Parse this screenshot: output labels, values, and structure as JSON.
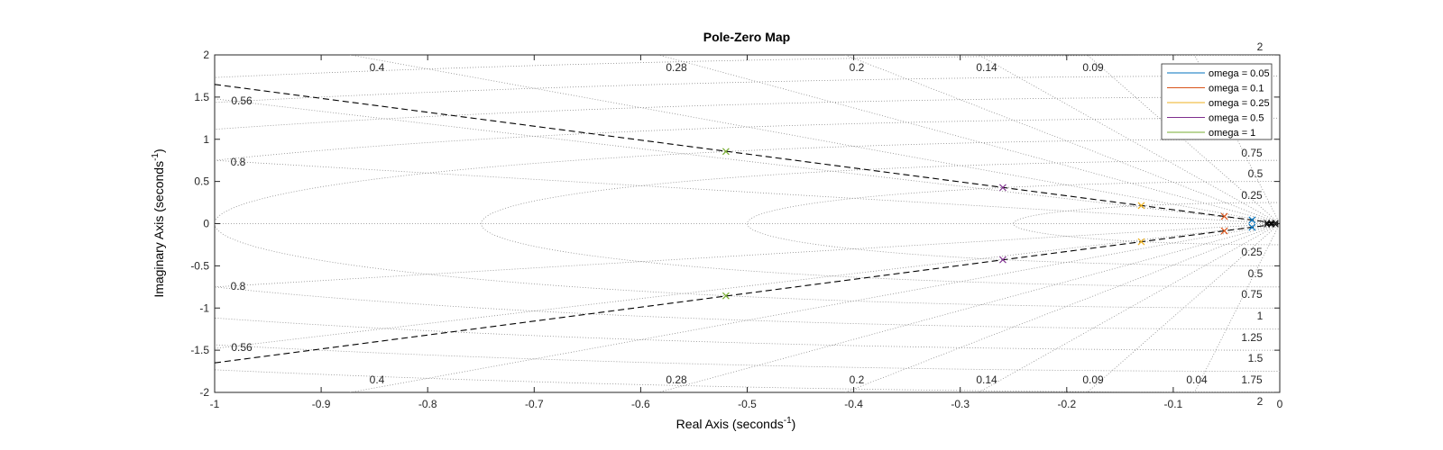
{
  "chart_data": {
    "type": "scatter",
    "title": "Pole-Zero Map",
    "xlabel": "Real Axis (seconds",
    "ylabel": "Imaginary Axis (seconds",
    "axis_unit_superscript": "-1",
    "xlim": [
      -1,
      0
    ],
    "ylim": [
      -2,
      2
    ],
    "x_ticks": [
      -1,
      -0.9,
      -0.8,
      -0.7,
      -0.6,
      -0.5,
      -0.4,
      -0.3,
      -0.2,
      -0.1,
      0
    ],
    "x_tick_labels": [
      "-1",
      "-0.9",
      "-0.8",
      "-0.7",
      "-0.6",
      "-0.5",
      "-0.4",
      "-0.3",
      "-0.2",
      "-0.1",
      "0"
    ],
    "y_ticks": [
      -2,
      -1.5,
      -1,
      -0.5,
      0,
      0.5,
      1,
      1.5,
      2
    ],
    "y_tick_labels": [
      "-2",
      "-1.5",
      "-1",
      "-0.5",
      "0",
      "0.5",
      "1",
      "1.5",
      "2"
    ],
    "grid": "damping and natural frequency grid (dotted)",
    "legend_position": "top-right",
    "damping_labels": [
      "0.56",
      "0.8",
      "0.4",
      "0.28",
      "0.2",
      "0.14",
      "0.09",
      "0.04"
    ],
    "frequency_labels": [
      "2",
      "1.75",
      "1.5",
      "1.25",
      "1",
      "0.75",
      "0.5",
      "0.25"
    ],
    "reference_line": {
      "style": "dashed",
      "points": [
        [
          -1,
          1.65
        ],
        [
          0,
          0
        ]
      ],
      "color": "#000000"
    },
    "series": [
      {
        "name": "omega = 0.05",
        "color": "#0072BD",
        "marker": "x",
        "poles": [
          [
            -0.026,
            0.043
          ],
          [
            -0.026,
            -0.043
          ]
        ]
      },
      {
        "name": "omega = 0.1",
        "color": "#D95319",
        "marker": "x",
        "poles": [
          [
            -0.052,
            0.086
          ],
          [
            -0.052,
            -0.086
          ]
        ]
      },
      {
        "name": "omega = 0.25",
        "color": "#EDB120",
        "marker": "x",
        "poles": [
          [
            -0.13,
            0.214
          ],
          [
            -0.13,
            -0.214
          ]
        ]
      },
      {
        "name": "omega = 0.5",
        "color": "#7E2F8E",
        "marker": "x",
        "poles": [
          [
            -0.26,
            0.428
          ],
          [
            -0.26,
            -0.428
          ]
        ]
      },
      {
        "name": "omega = 1",
        "color": "#77AC30",
        "marker": "x",
        "poles": [
          [
            -0.52,
            0.855
          ],
          [
            -0.52,
            -0.855
          ]
        ]
      }
    ]
  }
}
